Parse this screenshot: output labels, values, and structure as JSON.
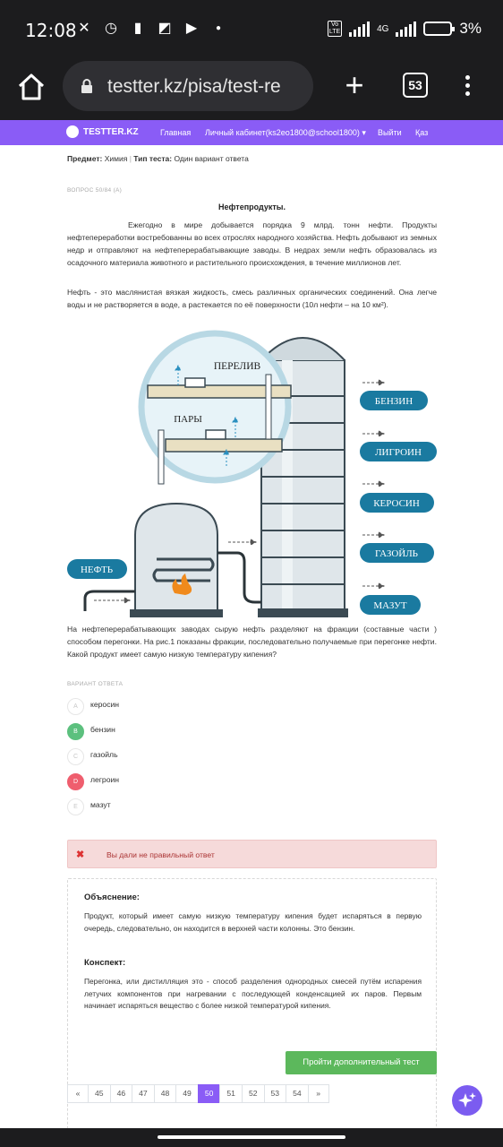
{
  "status": {
    "time": "12:08",
    "network": "4G",
    "volte": "Vo LTE",
    "battery": "3%"
  },
  "browser": {
    "url": "testter.kz/pisa/test-re",
    "tab_count": "53"
  },
  "nav": {
    "logo": "TESTTER.KZ",
    "items": [
      "Главная",
      "Личный кабинет(ks2eo1800@school1800)",
      "Выйти",
      "Қаз"
    ]
  },
  "meta": {
    "subject_label": "Предмет:",
    "subject": "Химия",
    "type_label": "Тип теста:",
    "type": "Один вариант ответа"
  },
  "question": {
    "number": "ВОПРОС 50/84",
    "flag": "(A)",
    "title": "Нефтепродукты.",
    "para1": "Ежегодно в мире добывается порядка 9 млрд. тонн нефти. Продукты нефтепереработки востребованны во всех отрослях народного хозяйства. Нефть добывают из земных недр  и отправляют на нефтеперерабатывающие заводы. В недрах земли нефть образовалась из осадочного материала животного и растительного происхождения, в течение миллионов лет.",
    "para2": "Нефть - это маслянистая вязкая жидкость, смесь различных органических соединений. Она легче воды и не растворяется в воде, а растекается по её поверхности (10л нефти – на 10 км²).",
    "para3": "На нефтеперерабатывающих заводах  сырую нефть  разделяют на фракции (составные части ) способом перегонки. На рис.1 показаны фракции, последовательно получаемые при перегонке нефти. Какой продукт имеет самую низкую температуру кипения?"
  },
  "diagram": {
    "labels": {
      "overflow": "ПЕРЕЛИВ",
      "vapors": "ПАРЫ",
      "oil": "НЕФТЬ"
    },
    "fractions": [
      "БЕНЗИН",
      "ЛИГРОИН",
      "КЕРОСИН",
      "ГАЗОЙЛЬ",
      "МАЗУТ"
    ]
  },
  "answers": {
    "label": "ВАРИАНТ ОТВЕТА",
    "options": [
      {
        "letter": "A",
        "text": "керосин",
        "state": "none"
      },
      {
        "letter": "B",
        "text": "бензин",
        "state": "correct"
      },
      {
        "letter": "C",
        "text": "газойль",
        "state": "none"
      },
      {
        "letter": "D",
        "text": "легроин",
        "state": "wrong"
      },
      {
        "letter": "E",
        "text": "мазут",
        "state": "none"
      }
    ]
  },
  "alert": {
    "text": "Вы дали не правильный ответ"
  },
  "explanation": {
    "heading": "Объяснение:",
    "text": "Продукт, который имеет самую низкую температуру кипения будет испаряться в первую очередь, следовательно, он находится в верхней части колонны. Это бензин.",
    "summary_heading": "Конспект:",
    "summary_text": "Перегонка, или дистилляция это - способ разделения однородных смесей путём испарения летучих компонентов при нагревании с последующей конденсацией их паров. Первым начинает испаряться вещество с более низкой температурой кипения."
  },
  "next_button": "Пройти дополнительный тест",
  "pagination": {
    "prev": "«",
    "pages": [
      "45",
      "46",
      "47",
      "48",
      "49",
      "50",
      "51",
      "52",
      "53",
      "54"
    ],
    "active": "50",
    "next": "»"
  },
  "colors": {
    "brand": "#8a5cf6",
    "correct": "#5cc07e",
    "wrong": "#ef5e6e",
    "label_blue": "#1a7aa0"
  }
}
